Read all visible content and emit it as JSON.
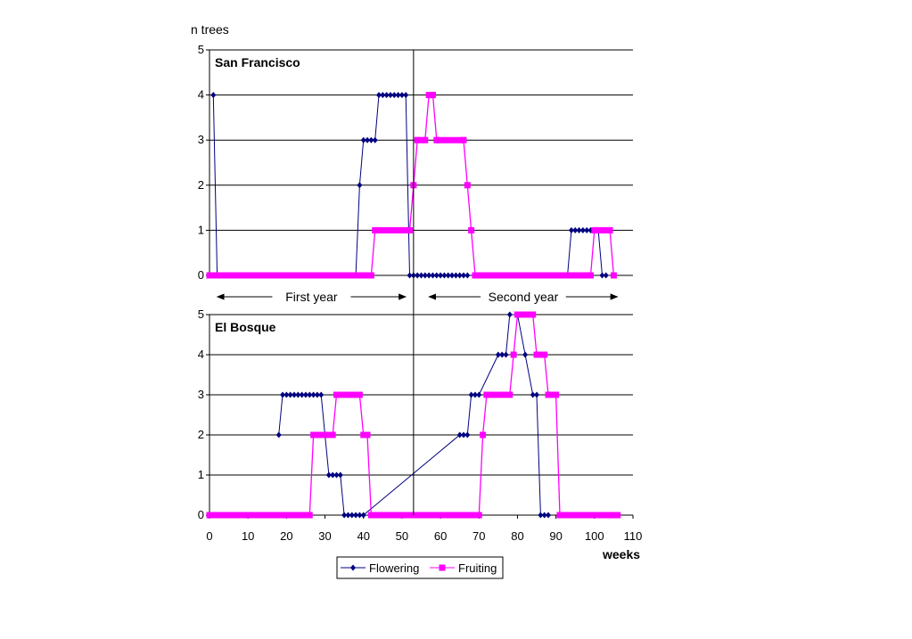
{
  "chart_data": {
    "type": "line",
    "ylabel": "n trees",
    "xlabel": "weeks",
    "xlim": [
      0,
      110
    ],
    "xticks": [
      "0",
      "10",
      "20",
      "30",
      "40",
      "50",
      "60",
      "70",
      "80",
      "90",
      "100",
      "110"
    ],
    "divider_x": 53,
    "year_labels": [
      {
        "label": "First year",
        "x_from": 2,
        "x_to": 51
      },
      {
        "label": "Second year",
        "x_from": 57,
        "x_to": 106
      }
    ],
    "legend": [
      {
        "label": "Flowering",
        "color": "#000080",
        "marker": "diamond"
      },
      {
        "label": "Fruiting",
        "color": "#ff00ff",
        "marker": "square"
      }
    ],
    "panels": [
      {
        "title": "San Francisco",
        "ylim": [
          0,
          5
        ],
        "yticks": [
          "0",
          "1",
          "2",
          "3",
          "4",
          "5"
        ],
        "series": [
          {
            "name": "Flowering",
            "color": "#000080",
            "points": [
              [
                1,
                4
              ],
              [
                2,
                0
              ],
              [
                38,
                0
              ],
              [
                39,
                2
              ],
              [
                40,
                3
              ],
              [
                41,
                3
              ],
              [
                42,
                3
              ],
              [
                43,
                3
              ],
              [
                44,
                4
              ],
              [
                45,
                4
              ],
              [
                46,
                4
              ],
              [
                47,
                4
              ],
              [
                48,
                4
              ],
              [
                49,
                4
              ],
              [
                50,
                4
              ],
              [
                51,
                4
              ],
              [
                52,
                0
              ],
              [
                53,
                0
              ],
              [
                54,
                0
              ],
              [
                55,
                0
              ],
              [
                56,
                0
              ],
              [
                57,
                0
              ],
              [
                58,
                0
              ],
              [
                59,
                0
              ],
              [
                60,
                0
              ],
              [
                61,
                0
              ],
              [
                62,
                0
              ],
              [
                63,
                0
              ],
              [
                64,
                0
              ],
              [
                65,
                0
              ],
              [
                66,
                0
              ],
              [
                67,
                0
              ],
              [
                93,
                0
              ],
              [
                94,
                1
              ],
              [
                95,
                1
              ],
              [
                96,
                1
              ],
              [
                97,
                1
              ],
              [
                98,
                1
              ],
              [
                99,
                1
              ],
              [
                100,
                1
              ],
              [
                101,
                1
              ],
              [
                102,
                0
              ],
              [
                103,
                0
              ]
            ]
          },
          {
            "name": "Fruiting",
            "color": "#ff00ff",
            "points": [
              [
                0,
                0
              ],
              [
                42,
                0
              ],
              [
                43,
                1
              ],
              [
                52,
                1
              ],
              [
                53,
                2
              ],
              [
                54,
                3
              ],
              [
                56,
                3
              ],
              [
                57,
                4
              ],
              [
                58,
                4
              ],
              [
                59,
                3
              ],
              [
                66,
                3
              ],
              [
                67,
                2
              ],
              [
                68,
                1
              ],
              [
                69,
                0
              ],
              [
                99,
                0
              ],
              [
                100,
                1
              ],
              [
                104,
                1
              ],
              [
                105,
                0
              ]
            ]
          }
        ]
      },
      {
        "title": "El Bosque",
        "ylim": [
          0,
          5
        ],
        "yticks": [
          "0",
          "1",
          "2",
          "3",
          "4",
          "5"
        ],
        "series": [
          {
            "name": "Flowering",
            "color": "#000080",
            "points": [
              [
                18,
                2
              ],
              [
                19,
                3
              ],
              [
                20,
                3
              ],
              [
                21,
                3
              ],
              [
                22,
                3
              ],
              [
                23,
                3
              ],
              [
                24,
                3
              ],
              [
                25,
                3
              ],
              [
                26,
                3
              ],
              [
                27,
                3
              ],
              [
                28,
                3
              ],
              [
                29,
                3
              ],
              [
                31,
                1
              ],
              [
                32,
                1
              ],
              [
                33,
                1
              ],
              [
                34,
                1
              ],
              [
                35,
                0
              ],
              [
                36,
                0
              ],
              [
                37,
                0
              ],
              [
                38,
                0
              ],
              [
                39,
                0
              ],
              [
                40,
                0
              ],
              [
                65,
                2
              ],
              [
                66,
                2
              ],
              [
                67,
                2
              ],
              [
                68,
                3
              ],
              [
                69,
                3
              ],
              [
                70,
                3
              ],
              [
                75,
                4
              ],
              [
                76,
                4
              ],
              [
                77,
                4
              ],
              [
                78,
                5
              ],
              [
                80,
                5
              ],
              [
                82,
                4
              ],
              [
                84,
                3
              ],
              [
                85,
                3
              ],
              [
                86,
                0
              ],
              [
                87,
                0
              ],
              [
                88,
                0
              ]
            ]
          },
          {
            "name": "Fruiting",
            "color": "#ff00ff",
            "points": [
              [
                0,
                0
              ],
              [
                26,
                0
              ],
              [
                27,
                2
              ],
              [
                32,
                2
              ],
              [
                33,
                3
              ],
              [
                39,
                3
              ],
              [
                40,
                2
              ],
              [
                41,
                2
              ],
              [
                42,
                0
              ],
              [
                70,
                0
              ],
              [
                71,
                2
              ],
              [
                72,
                3
              ],
              [
                78,
                3
              ],
              [
                79,
                4
              ],
              [
                80,
                5
              ],
              [
                84,
                5
              ],
              [
                85,
                4
              ],
              [
                87,
                4
              ],
              [
                88,
                3
              ],
              [
                90,
                3
              ],
              [
                91,
                0
              ],
              [
                106,
                0
              ]
            ]
          }
        ]
      }
    ]
  }
}
